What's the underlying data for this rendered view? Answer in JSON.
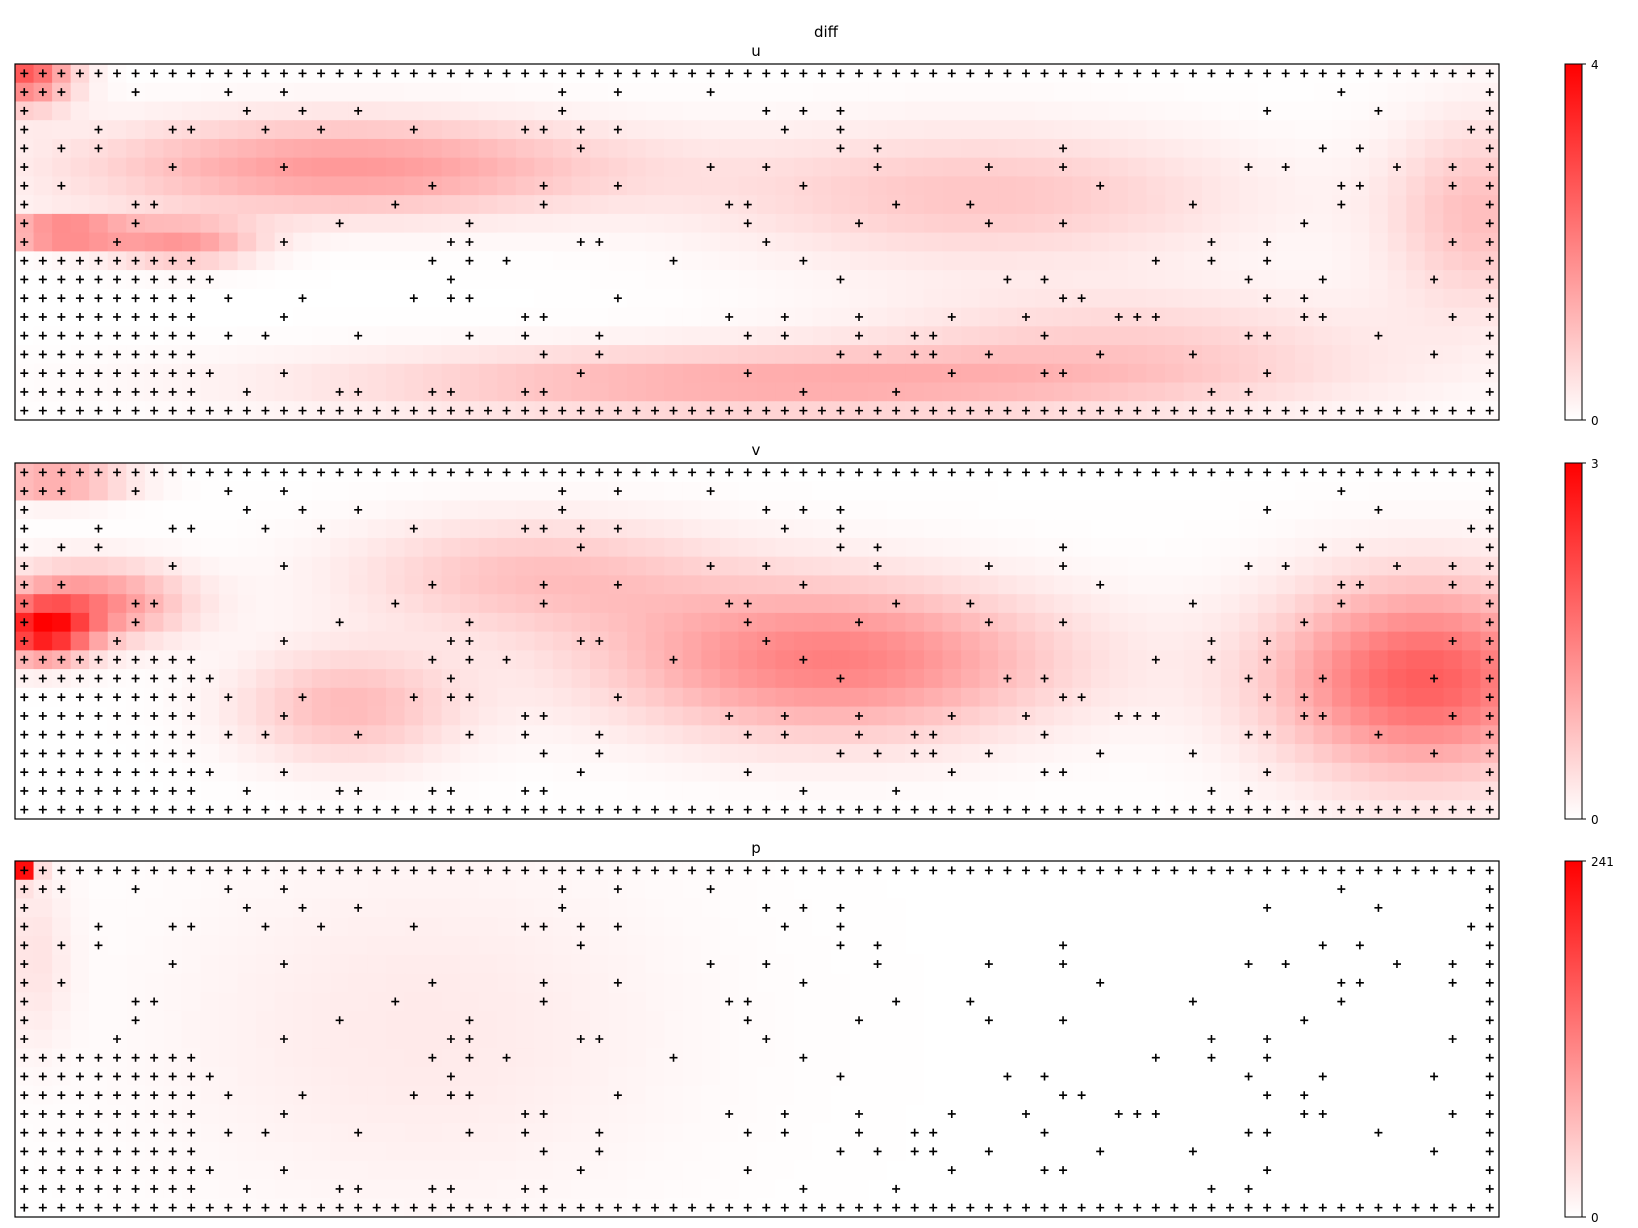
{
  "figure": {
    "suptitle": "diff"
  },
  "chart_data": [
    {
      "type": "heatmap",
      "title": "u",
      "colorbar": {
        "min": 0,
        "max": 4,
        "ticks": [
          "0",
          "4"
        ]
      },
      "grid": {
        "cols": 80,
        "rows": 19
      },
      "colormap": [
        "#ffffff",
        "#ff0000"
      ],
      "hotspots": [
        {
          "col": 0.5,
          "row": 0.4,
          "value": 2.6,
          "sx": 2.5,
          "sy": 1.8
        },
        {
          "col": 2.5,
          "row": 9,
          "value": 2.4,
          "sx": 3.5,
          "sy": 0.8
        },
        {
          "col": 18,
          "row": 5.5,
          "value": 1.6,
          "sx": 14,
          "sy": 2.5
        },
        {
          "col": 9,
          "row": 9.5,
          "value": 1.5,
          "sx": 4,
          "sy": 1.2
        },
        {
          "col": 40,
          "row": 17,
          "value": 1.3,
          "sx": 22,
          "sy": 1.8
        },
        {
          "col": 52,
          "row": 7,
          "value": 0.9,
          "sx": 14,
          "sy": 3.5
        },
        {
          "col": 79,
          "row": 8,
          "value": 1.0,
          "sx": 5,
          "sy": 5
        },
        {
          "col": 60,
          "row": 15,
          "value": 0.7,
          "sx": 14,
          "sy": 3
        }
      ]
    },
    {
      "type": "heatmap",
      "title": "v",
      "colorbar": {
        "min": 0,
        "max": 3,
        "ticks": [
          "0",
          "3"
        ]
      },
      "grid": {
        "cols": 80,
        "rows": 19
      },
      "colormap": [
        "#ffffff",
        "#ff0000"
      ],
      "hotspots": [
        {
          "col": 1.5,
          "row": 9,
          "value": 2.5,
          "sx": 2.5,
          "sy": 1.5
        },
        {
          "col": 4,
          "row": 7.5,
          "value": 1.4,
          "sx": 5,
          "sy": 2
        },
        {
          "col": 2,
          "row": 1,
          "value": 1.2,
          "sx": 4,
          "sy": 1
        },
        {
          "col": 44,
          "row": 10.5,
          "value": 1.5,
          "sx": 12,
          "sy": 4
        },
        {
          "col": 76,
          "row": 11.5,
          "value": 1.9,
          "sx": 8,
          "sy": 5
        },
        {
          "col": 18,
          "row": 13,
          "value": 0.8,
          "sx": 6,
          "sy": 3
        },
        {
          "col": 28,
          "row": 6,
          "value": 0.7,
          "sx": 10,
          "sy": 3
        }
      ]
    },
    {
      "type": "heatmap",
      "title": "p",
      "colorbar": {
        "min": 0,
        "max": 241,
        "ticks": [
          "0",
          "241"
        ]
      },
      "grid": {
        "cols": 80,
        "rows": 19
      },
      "colormap": [
        "#ffffff",
        "#ff0000"
      ],
      "hotspots": [
        {
          "col": 0.4,
          "row": 0.3,
          "value": 241,
          "sx": 0.7,
          "sy": 0.7
        },
        {
          "col": 1,
          "row": 5,
          "value": 25,
          "sx": 2,
          "sy": 5
        },
        {
          "col": 22,
          "row": 9,
          "value": 20,
          "sx": 14,
          "sy": 10
        }
      ]
    }
  ]
}
